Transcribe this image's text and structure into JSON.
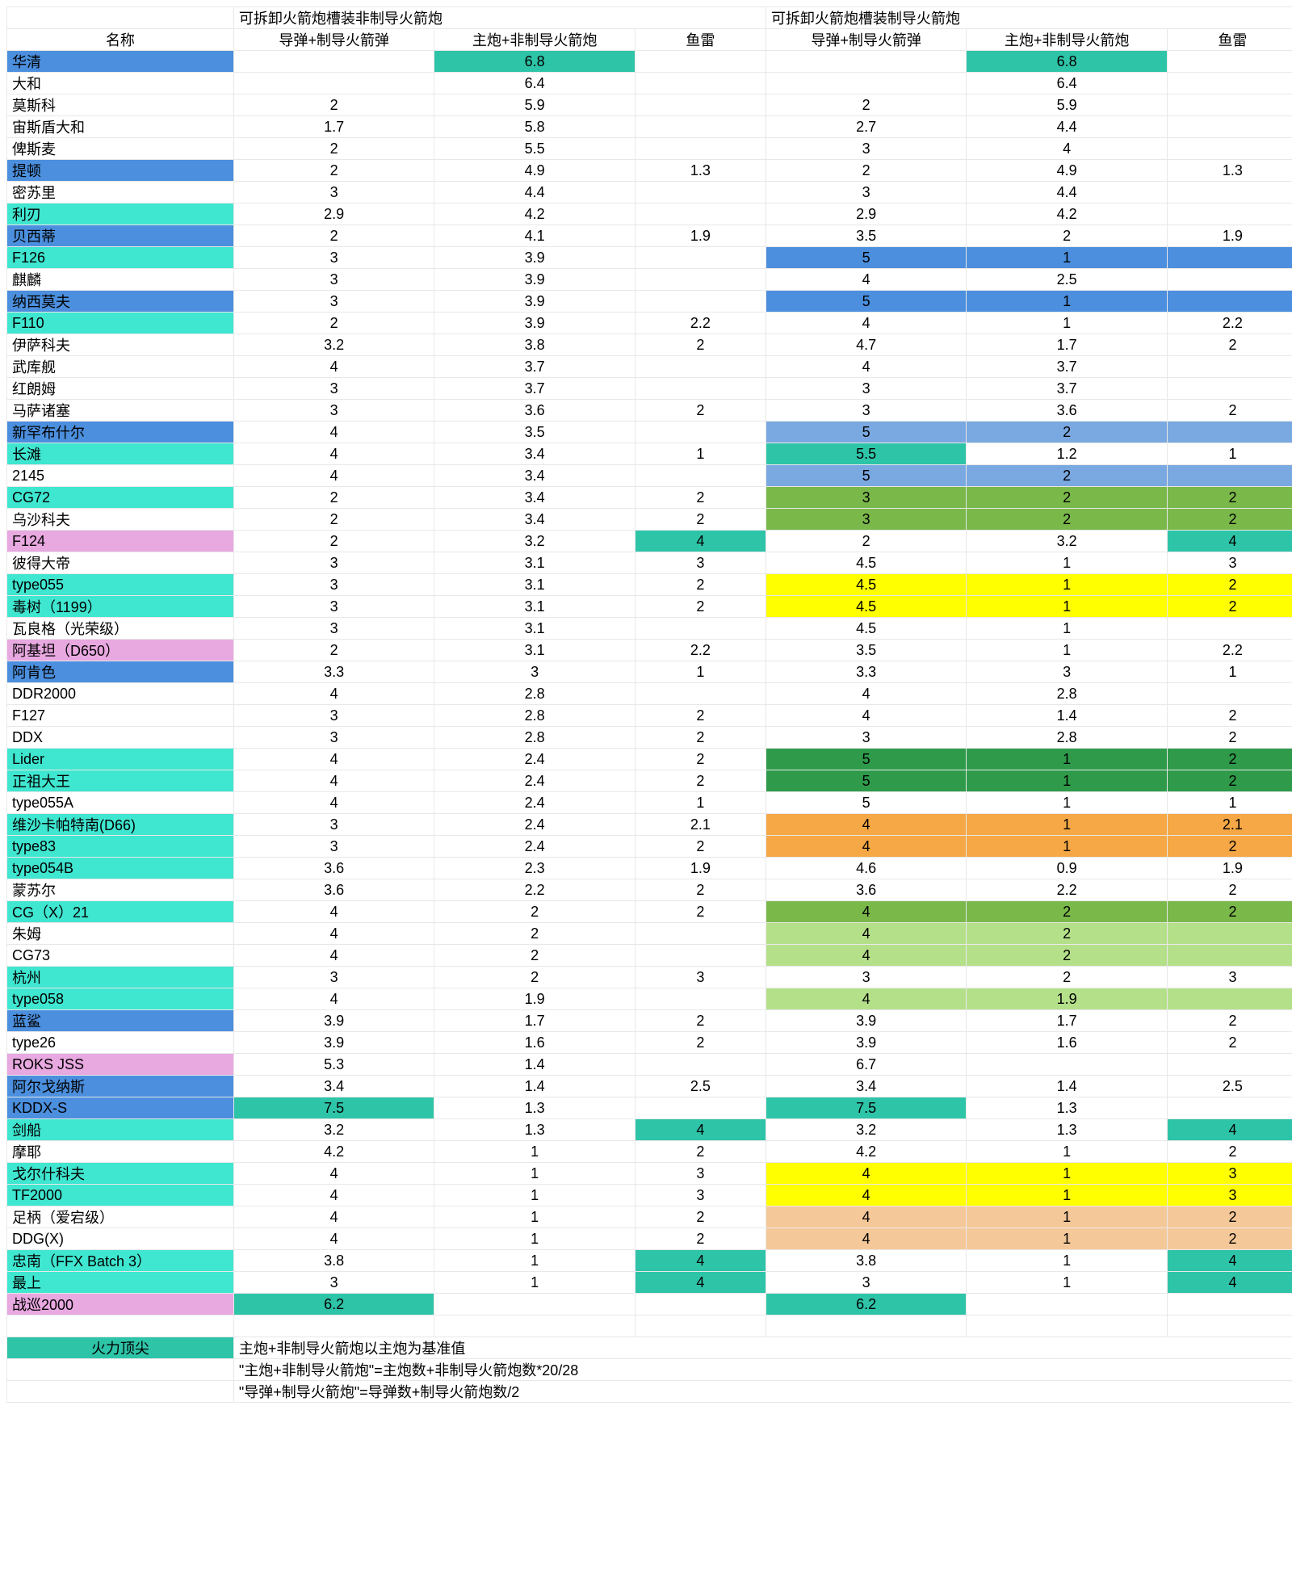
{
  "colors": {
    "blue": "#4b8fde",
    "cyan": "#3fe6d0",
    "pink": "#e8a8e0",
    "teal": "#2ec4a8",
    "yellow": "#ffff00",
    "orange": "#f5a845",
    "peach": "#f5c89a",
    "green_dark": "#2e9a4a",
    "green_mid": "#7ab84a",
    "green_light": "#b5e08a",
    "blue_light": "#7aa8e0",
    "white": "#ffffff"
  },
  "header_group": {
    "left": "可拆卸火箭炮槽装非制导火箭炮",
    "right": "可拆卸火箭炮槽装制导火箭炮"
  },
  "header_cols": {
    "name": "名称",
    "c1": "导弹+制导火箭弹",
    "c2": "主炮+非制导火箭炮",
    "c3": "鱼雷",
    "c4": "导弹+制导火箭弹",
    "c5": "主炮+非制导火箭炮",
    "c6": "鱼雷"
  },
  "legend": {
    "label": "火力顶尖",
    "label_bg": "teal",
    "lines": [
      "主炮+非制导火箭炮以主炮为基准值",
      "\"主炮+非制导火箭炮\"=主炮数+非制导火箭炮数*20/28",
      "\"导弹+制导火箭炮\"=导弹数+制导火箭炮数/2"
    ]
  },
  "rows": [
    {
      "name": "华清",
      "name_bg": "blue",
      "c2": "6.8",
      "c2_bg": "teal",
      "c5": "6.8",
      "c5_bg": "teal"
    },
    {
      "name": "大和",
      "c2": "6.4",
      "c5": "6.4"
    },
    {
      "name": "莫斯科",
      "c1": "2",
      "c2": "5.9",
      "c4": "2",
      "c5": "5.9"
    },
    {
      "name": "宙斯盾大和",
      "c1": "1.7",
      "c2": "5.8",
      "c4": "2.7",
      "c5": "4.4"
    },
    {
      "name": "俾斯麦",
      "c1": "2",
      "c2": "5.5",
      "c4": "3",
      "c5": "4"
    },
    {
      "name": "提顿",
      "name_bg": "blue",
      "c1": "2",
      "c2": "4.9",
      "c3": "1.3",
      "c4": "2",
      "c5": "4.9",
      "c6": "1.3"
    },
    {
      "name": "密苏里",
      "c1": "3",
      "c2": "4.4",
      "c4": "3",
      "c5": "4.4"
    },
    {
      "name": "利刃",
      "name_bg": "cyan",
      "c1": "2.9",
      "c2": "4.2",
      "c4": "2.9",
      "c5": "4.2"
    },
    {
      "name": "贝西蒂",
      "name_bg": "blue",
      "c1": "2",
      "c2": "4.1",
      "c3": "1.9",
      "c4": "3.5",
      "c5": "2",
      "c6": "1.9"
    },
    {
      "name": "F126",
      "name_bg": "cyan",
      "c1": "3",
      "c2": "3.9",
      "c4": "5",
      "c4_bg": "blue",
      "c5": "1",
      "c5_bg": "blue",
      "c6_bg": "blue"
    },
    {
      "name": "麒麟",
      "c1": "3",
      "c2": "3.9",
      "c4": "4",
      "c5": "2.5"
    },
    {
      "name": "纳西莫夫",
      "name_bg": "blue",
      "c1": "3",
      "c2": "3.9",
      "c4": "5",
      "c4_bg": "blue",
      "c5": "1",
      "c5_bg": "blue",
      "c6_bg": "blue"
    },
    {
      "name": "F110",
      "name_bg": "cyan",
      "c1": "2",
      "c2": "3.9",
      "c3": "2.2",
      "c4": "4",
      "c5": "1",
      "c6": "2.2"
    },
    {
      "name": "伊萨科夫",
      "c1": "3.2",
      "c2": "3.8",
      "c3": "2",
      "c4": "4.7",
      "c5": "1.7",
      "c6": "2"
    },
    {
      "name": "武库舰",
      "c1": "4",
      "c2": "3.7",
      "c4": "4",
      "c5": "3.7"
    },
    {
      "name": "红朗姆",
      "c1": "3",
      "c2": "3.7",
      "c4": "3",
      "c5": "3.7"
    },
    {
      "name": "马萨诸塞",
      "c1": "3",
      "c2": "3.6",
      "c3": "2",
      "c4": "3",
      "c5": "3.6",
      "c6": "2"
    },
    {
      "name": "新罕布什尔",
      "name_bg": "blue",
      "c1": "4",
      "c2": "3.5",
      "c4": "5",
      "c4_bg": "blue_light",
      "c5": "2",
      "c5_bg": "blue_light",
      "c6_bg": "blue_light"
    },
    {
      "name": "长滩",
      "name_bg": "cyan",
      "c1": "4",
      "c2": "3.4",
      "c3": "1",
      "c4": "5.5",
      "c4_bg": "teal",
      "c5": "1.2",
      "c6": "1"
    },
    {
      "name": "2145",
      "c1": "4",
      "c2": "3.4",
      "c4": "5",
      "c4_bg": "blue_light",
      "c5": "2",
      "c5_bg": "blue_light",
      "c6_bg": "blue_light"
    },
    {
      "name": "CG72",
      "name_bg": "cyan",
      "c1": "2",
      "c2": "3.4",
      "c3": "2",
      "c4": "3",
      "c4_bg": "green_mid",
      "c5": "2",
      "c5_bg": "green_mid",
      "c6": "2",
      "c6_bg": "green_mid"
    },
    {
      "name": "乌沙科夫",
      "c1": "2",
      "c2": "3.4",
      "c3": "2",
      "c4": "3",
      "c4_bg": "green_mid",
      "c5": "2",
      "c5_bg": "green_mid",
      "c6": "2",
      "c6_bg": "green_mid"
    },
    {
      "name": "F124",
      "name_bg": "pink",
      "c1": "2",
      "c2": "3.2",
      "c3": "4",
      "c3_bg": "teal",
      "c4": "2",
      "c5": "3.2",
      "c6": "4",
      "c6_bg": "teal"
    },
    {
      "name": "彼得大帝",
      "c1": "3",
      "c2": "3.1",
      "c3": "3",
      "c4": "4.5",
      "c5": "1",
      "c6": "3"
    },
    {
      "name": "type055",
      "name_bg": "cyan",
      "c1": "3",
      "c2": "3.1",
      "c3": "2",
      "c4": "4.5",
      "c4_bg": "yellow",
      "c5": "1",
      "c5_bg": "yellow",
      "c6": "2",
      "c6_bg": "yellow"
    },
    {
      "name": "毒树（1199）",
      "name_bg": "cyan",
      "c1": "3",
      "c2": "3.1",
      "c3": "2",
      "c4": "4.5",
      "c4_bg": "yellow",
      "c5": "1",
      "c5_bg": "yellow",
      "c6": "2",
      "c6_bg": "yellow"
    },
    {
      "name": "瓦良格（光荣级）",
      "c1": "3",
      "c2": "3.1",
      "c4": "4.5",
      "c5": "1"
    },
    {
      "name": "阿基坦（D650）",
      "name_bg": "pink",
      "c1": "2",
      "c2": "3.1",
      "c3": "2.2",
      "c4": "3.5",
      "c5": "1",
      "c6": "2.2"
    },
    {
      "name": "阿肯色",
      "name_bg": "blue",
      "c1": "3.3",
      "c2": "3",
      "c3": "1",
      "c4": "3.3",
      "c5": "3",
      "c6": "1"
    },
    {
      "name": "DDR2000",
      "c1": "4",
      "c2": "2.8",
      "c4": "4",
      "c5": "2.8"
    },
    {
      "name": "F127",
      "c1": "3",
      "c2": "2.8",
      "c3": "2",
      "c4": "4",
      "c5": "1.4",
      "c6": "2"
    },
    {
      "name": "DDX",
      "c1": "3",
      "c2": "2.8",
      "c3": "2",
      "c4": "3",
      "c5": "2.8",
      "c6": "2"
    },
    {
      "name": "Lider",
      "name_bg": "cyan",
      "c1": "4",
      "c2": "2.4",
      "c3": "2",
      "c4": "5",
      "c4_bg": "green_dark",
      "c5": "1",
      "c5_bg": "green_dark",
      "c6": "2",
      "c6_bg": "green_dark"
    },
    {
      "name": "正祖大王",
      "name_bg": "cyan",
      "c1": "4",
      "c2": "2.4",
      "c3": "2",
      "c4": "5",
      "c4_bg": "green_dark",
      "c5": "1",
      "c5_bg": "green_dark",
      "c6": "2",
      "c6_bg": "green_dark"
    },
    {
      "name": "type055A",
      "c1": "4",
      "c2": "2.4",
      "c3": "1",
      "c4": "5",
      "c5": "1",
      "c6": "1"
    },
    {
      "name": "维沙卡帕特南(D66)",
      "name_bg": "cyan",
      "c1": "3",
      "c2": "2.4",
      "c3": "2.1",
      "c4": "4",
      "c4_bg": "orange",
      "c5": "1",
      "c5_bg": "orange",
      "c6": "2.1",
      "c6_bg": "orange"
    },
    {
      "name": "type83",
      "name_bg": "cyan",
      "c1": "3",
      "c2": "2.4",
      "c3": "2",
      "c4": "4",
      "c4_bg": "orange",
      "c5": "1",
      "c5_bg": "orange",
      "c6": "2",
      "c6_bg": "orange"
    },
    {
      "name": "type054B",
      "name_bg": "cyan",
      "c1": "3.6",
      "c2": "2.3",
      "c3": "1.9",
      "c4": "4.6",
      "c5": "0.9",
      "c6": "1.9"
    },
    {
      "name": "蒙苏尔",
      "c1": "3.6",
      "c2": "2.2",
      "c3": "2",
      "c4": "3.6",
      "c5": "2.2",
      "c6": "2"
    },
    {
      "name": "CG（X）21",
      "name_bg": "cyan",
      "c1": "4",
      "c2": "2",
      "c3": "2",
      "c4": "4",
      "c4_bg": "green_mid",
      "c5": "2",
      "c5_bg": "green_mid",
      "c6": "2",
      "c6_bg": "green_mid"
    },
    {
      "name": "朱姆",
      "c1": "4",
      "c2": "2",
      "c4": "4",
      "c4_bg": "green_light",
      "c5": "2",
      "c5_bg": "green_light",
      "c6_bg": "green_light"
    },
    {
      "name": "CG73",
      "c1": "4",
      "c2": "2",
      "c4": "4",
      "c4_bg": "green_light",
      "c5": "2",
      "c5_bg": "green_light",
      "c6_bg": "green_light"
    },
    {
      "name": "杭州",
      "name_bg": "cyan",
      "c1": "3",
      "c2": "2",
      "c3": "3",
      "c4": "3",
      "c5": "2",
      "c6": "3"
    },
    {
      "name": "type058",
      "name_bg": "cyan",
      "c1": "4",
      "c2": "1.9",
      "c4": "4",
      "c4_bg": "green_light",
      "c5": "1.9",
      "c5_bg": "green_light",
      "c6_bg": "green_light"
    },
    {
      "name": "蓝鲨",
      "name_bg": "blue",
      "c1": "3.9",
      "c2": "1.7",
      "c3": "2",
      "c4": "3.9",
      "c5": "1.7",
      "c6": "2"
    },
    {
      "name": "type26",
      "c1": "3.9",
      "c2": "1.6",
      "c3": "2",
      "c4": "3.9",
      "c5": "1.6",
      "c6": "2"
    },
    {
      "name": "ROKS JSS",
      "name_bg": "pink",
      "c1": "5.3",
      "c2": "1.4",
      "c4": "6.7"
    },
    {
      "name": "阿尔戈纳斯",
      "name_bg": "blue",
      "c1": "3.4",
      "c2": "1.4",
      "c3": "2.5",
      "c4": "3.4",
      "c5": "1.4",
      "c6": "2.5"
    },
    {
      "name": "KDDX-S",
      "name_bg": "blue",
      "c1": "7.5",
      "c1_bg": "teal",
      "c2": "1.3",
      "c4": "7.5",
      "c4_bg": "teal",
      "c5": "1.3"
    },
    {
      "name": "剑船",
      "name_bg": "cyan",
      "c1": "3.2",
      "c2": "1.3",
      "c3": "4",
      "c3_bg": "teal",
      "c4": "3.2",
      "c5": "1.3",
      "c6": "4",
      "c6_bg": "teal"
    },
    {
      "name": "摩耶",
      "c1": "4.2",
      "c2": "1",
      "c3": "2",
      "c4": "4.2",
      "c5": "1",
      "c6": "2"
    },
    {
      "name": "戈尔什科夫",
      "name_bg": "cyan",
      "c1": "4",
      "c2": "1",
      "c3": "3",
      "c4": "4",
      "c4_bg": "yellow",
      "c5": "1",
      "c5_bg": "yellow",
      "c6": "3",
      "c6_bg": "yellow"
    },
    {
      "name": "TF2000",
      "name_bg": "cyan",
      "c1": "4",
      "c2": "1",
      "c3": "3",
      "c4": "4",
      "c4_bg": "yellow",
      "c5": "1",
      "c5_bg": "yellow",
      "c6": "3",
      "c6_bg": "yellow"
    },
    {
      "name": "足柄（爱宕级）",
      "c1": "4",
      "c2": "1",
      "c3": "2",
      "c4": "4",
      "c4_bg": "peach",
      "c5": "1",
      "c5_bg": "peach",
      "c6": "2",
      "c6_bg": "peach"
    },
    {
      "name": "DDG(X)",
      "c1": "4",
      "c2": "1",
      "c3": "2",
      "c4": "4",
      "c4_bg": "peach",
      "c5": "1",
      "c5_bg": "peach",
      "c6": "2",
      "c6_bg": "peach"
    },
    {
      "name": "忠南（FFX Batch 3）",
      "name_bg": "cyan",
      "c1": "3.8",
      "c2": "1",
      "c3": "4",
      "c3_bg": "teal",
      "c4": "3.8",
      "c5": "1",
      "c6": "4",
      "c6_bg": "teal"
    },
    {
      "name": "最上",
      "name_bg": "cyan",
      "c1": "3",
      "c2": "1",
      "c3": "4",
      "c3_bg": "teal",
      "c4": "3",
      "c5": "1",
      "c6": "4",
      "c6_bg": "teal"
    },
    {
      "name": "战巡2000",
      "name_bg": "pink",
      "c1": "6.2",
      "c1_bg": "teal",
      "c4": "6.2",
      "c4_bg": "teal"
    }
  ]
}
